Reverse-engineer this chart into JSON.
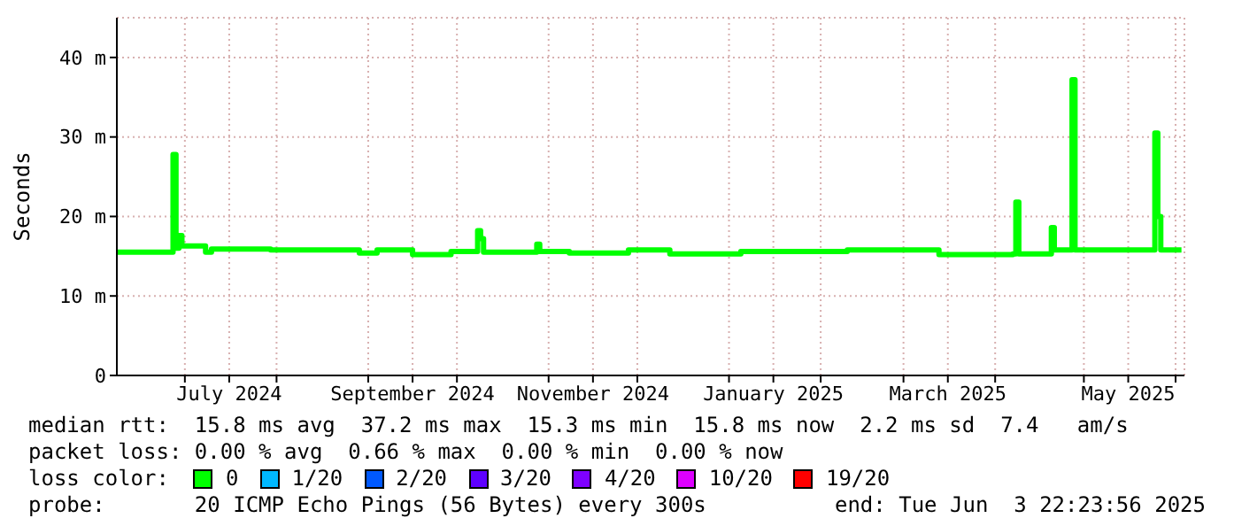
{
  "chart_data": {
    "type": "step",
    "ylabel": "Seconds",
    "legend_title": "loss color:",
    "legend": "bottom",
    "grid": true,
    "xlim": [
      "2024-06-08",
      "2025-06-04"
    ],
    "xticks": [
      {
        "value": "2024-07-01",
        "label": null
      },
      {
        "value": "2024-07-16",
        "label": "July 2024"
      },
      {
        "value": "2024-08-01",
        "label": null
      },
      {
        "value": "2024-09-01",
        "label": null
      },
      {
        "value": "2024-09-16",
        "label": "September 2024"
      },
      {
        "value": "2024-10-01",
        "label": null
      },
      {
        "value": "2024-11-01",
        "label": null
      },
      {
        "value": "2024-11-16",
        "label": "November 2024"
      },
      {
        "value": "2024-12-01",
        "label": null
      },
      {
        "value": "2025-01-01",
        "label": null
      },
      {
        "value": "2025-01-16",
        "label": "January 2025"
      },
      {
        "value": "2025-02-01",
        "label": null
      },
      {
        "value": "2025-03-01",
        "label": null
      },
      {
        "value": "2025-03-16",
        "label": "March 2025"
      },
      {
        "value": "2025-04-01",
        "label": null
      },
      {
        "value": "2025-05-01",
        "label": null
      },
      {
        "value": "2025-05-16",
        "label": "May 2025"
      },
      {
        "value": "2025-06-01",
        "label": null
      }
    ],
    "ylim": [
      0,
      45
    ],
    "yticks": [
      0,
      {
        "value": 10,
        "label": "10 m"
      },
      {
        "value": 20,
        "label": "20 m"
      },
      {
        "value": 30,
        "label": "30 m"
      },
      {
        "value": 40,
        "label": "40 m"
      }
    ],
    "x": [
      "2024-06-08",
      "2024-06-26",
      "2024-06-27",
      "2024-06-28",
      "2024-06-29",
      "2024-06-30",
      "2024-07-06",
      "2024-07-08",
      "2024-07-10",
      "2024-07-30",
      "2024-08-29",
      "2024-09-04",
      "2024-09-16",
      "2024-09-29",
      "2024-10-08",
      "2024-10-09",
      "2024-10-10",
      "2024-10-28",
      "2024-10-29",
      "2024-11-08",
      "2024-11-28",
      "2024-12-12",
      "2025-01-05",
      "2025-02-10",
      "2025-03-13",
      "2025-04-07",
      "2025-04-08",
      "2025-04-09",
      "2025-04-20",
      "2025-04-21",
      "2025-04-27",
      "2025-04-28",
      "2025-05-25",
      "2025-05-26",
      "2025-05-27",
      "2025-06-03"
    ],
    "series": [
      {
        "name": "0",
        "color": "#00ff00",
        "values": [
          15.5,
          15.5,
          27.8,
          16.0,
          17.6,
          16.3,
          16.3,
          15.5,
          15.9,
          15.8,
          15.4,
          15.8,
          15.2,
          15.6,
          18.2,
          17.2,
          15.5,
          16.5,
          15.6,
          15.4,
          15.8,
          15.3,
          15.6,
          15.8,
          15.2,
          15.3,
          21.8,
          15.3,
          18.6,
          15.8,
          37.2,
          15.8,
          30.5,
          20.0,
          15.8,
          15.8
        ]
      },
      {
        "name": "1/20",
        "color": "#00b8ff",
        "values": [
          null,
          null,
          null,
          null,
          null,
          null,
          null,
          null,
          null,
          null,
          null,
          null,
          null,
          null,
          null,
          null,
          null,
          null,
          null,
          null,
          null,
          null,
          null,
          null,
          null,
          null,
          null,
          null,
          null,
          null,
          null,
          null,
          null,
          null,
          null,
          null
        ]
      },
      {
        "name": "2/20",
        "color": "#0059ff",
        "values": [
          null,
          null,
          null,
          null,
          null,
          null,
          null,
          null,
          null,
          null,
          null,
          null,
          null,
          null,
          null,
          null,
          null,
          null,
          null,
          null,
          null,
          null,
          null,
          null,
          null,
          null,
          null,
          null,
          null,
          null,
          null,
          null,
          null,
          null,
          null,
          null
        ]
      },
      {
        "name": "3/20",
        "color": "#5e00ff",
        "values": [
          null,
          null,
          null,
          null,
          null,
          null,
          null,
          null,
          null,
          null,
          null,
          null,
          null,
          null,
          null,
          null,
          null,
          null,
          null,
          null,
          null,
          null,
          null,
          null,
          null,
          null,
          null,
          null,
          null,
          null,
          null,
          null,
          null,
          null,
          null,
          null
        ]
      },
      {
        "name": "4/20",
        "color": "#7e00ff",
        "values": [
          null,
          null,
          null,
          null,
          null,
          null,
          null,
          null,
          null,
          null,
          null,
          null,
          null,
          null,
          null,
          null,
          null,
          null,
          null,
          null,
          null,
          null,
          null,
          null,
          null,
          null,
          null,
          null,
          null,
          null,
          null,
          null,
          null,
          null,
          null,
          null
        ]
      },
      {
        "name": "10/20",
        "color": "#dd00ff",
        "values": [
          null,
          null,
          null,
          null,
          null,
          null,
          null,
          null,
          null,
          null,
          null,
          null,
          null,
          null,
          null,
          null,
          null,
          null,
          null,
          null,
          null,
          null,
          null,
          null,
          null,
          null,
          null,
          null,
          null,
          null,
          null,
          null,
          null,
          null,
          null,
          null
        ]
      },
      {
        "name": "19/20",
        "color": "#ff0000",
        "values": [
          null,
          null,
          null,
          null,
          null,
          null,
          null,
          null,
          null,
          null,
          null,
          null,
          null,
          null,
          null,
          null,
          null,
          null,
          null,
          null,
          null,
          null,
          null,
          null,
          null,
          null,
          null,
          null,
          null,
          null,
          null,
          null,
          null,
          null,
          null,
          null
        ]
      }
    ],
    "annotations": [
      "median rtt:  15.8 ms avg  37.2 ms max  15.3 ms min  15.8 ms now  2.2 ms sd  7.4   am/s",
      "packet loss: 0.00 % avg  0.66 % max  0.00 % min  0.00 % now",
      "probe:       20 ICMP Echo Pings (56 Bytes) every 300s",
      "end: Tue Jun  3 22:23:56 2025"
    ]
  }
}
